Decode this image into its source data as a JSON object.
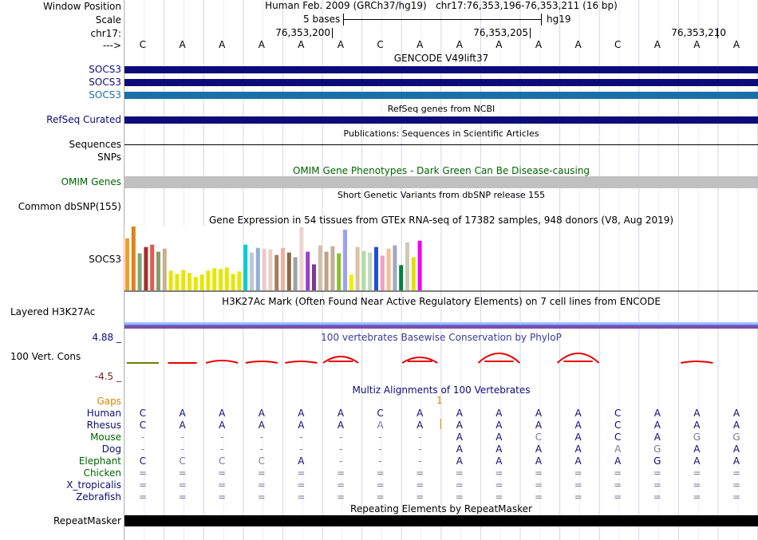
{
  "labels": {
    "window_position": "Window Position",
    "scale": "Scale",
    "chrom": "chr17:",
    "arrow": "--->",
    "gencode": [
      "SOCS3",
      "SOCS3",
      "SOCS3"
    ],
    "refseq": "RefSeq Curated",
    "sequences": "Sequences",
    "snps": "SNPs",
    "omim": "OMIM Genes",
    "dbsnp": "Common dbSNP(155)",
    "gtex": "SOCS3",
    "h3k27ac": "Layered H3K27Ac",
    "phylop_max": "4.88 _",
    "phylop": "100 Vert. Cons",
    "phylop_min": "-4.5 _",
    "gaps": "Gaps",
    "species": [
      "Human",
      "Rhesus",
      "Mouse",
      "Dog",
      "Elephant",
      "Chicken",
      "X_tropicalis",
      "Zebrafish"
    ],
    "repeatmasker": "RepeatMasker"
  },
  "header": {
    "assembly": "Human Feb. 2009 (GRCh37/hg19)",
    "position": "chr17:76,353,196-76,353,211 (16 bp)",
    "scale_label": "5 bases",
    "scale_db": "hg19",
    "positions": [
      "76,353,200",
      "76,353,205",
      "76,353,210"
    ]
  },
  "bases": [
    "C",
    "A",
    "A",
    "A",
    "A",
    "A",
    "C",
    "A",
    "A",
    "A",
    "A",
    "A",
    "C",
    "A",
    "A",
    "A"
  ],
  "track_titles": {
    "gencode": "GENCODE V49lift37",
    "refseq": "RefSeq genes from NCBI",
    "publications": "Publications: Sequences in Scientific Articles",
    "omim": "OMIM Gene Phenotypes - Dark Green Can Be Disease-causing",
    "dbsnp": "Short Genetic Variants from dbSNP release 155",
    "gtex": "Gene Expression in 54 tissues from GTEx RNA-seq of 17382 samples, 948 donors (V8, Aug 2019)",
    "h3k27ac": "H3K27Ac Mark (Often Found Near Active Regulatory Elements) on 7 cell lines from ENCODE",
    "phylop": "100 vertebrates Basewise Conservation by PhyloP",
    "multiz": "Multiz Alignments of 100 Vertebrates",
    "repeatmasker": "Repeating Elements by RepeatMasker"
  },
  "alignment": {
    "gap_marker": "1",
    "rows": [
      [
        "C",
        "A",
        "A",
        "A",
        "A",
        "A",
        "C",
        "A",
        "A",
        "A",
        "A",
        "A",
        "C",
        "A",
        "A",
        "A"
      ],
      [
        "C",
        "A",
        "A",
        "A",
        "A",
        "A",
        "A",
        "A",
        "A",
        "A",
        "A",
        "A",
        "C",
        "A",
        "A",
        "A"
      ],
      [
        "-",
        "-",
        "-",
        "-",
        "-",
        "-",
        "-",
        "-",
        "A",
        "A",
        "C",
        "A",
        "C",
        "A",
        "G",
        "G"
      ],
      [
        "-",
        "-",
        "-",
        "-",
        "-",
        "-",
        "-",
        "-",
        "A",
        "A",
        "A",
        "A",
        "A",
        "G",
        "A",
        "A"
      ],
      [
        "C",
        "C",
        "C",
        "C",
        "A",
        "-",
        "-",
        "-",
        "A",
        "A",
        "A",
        "A",
        "A",
        "G",
        "A",
        "A"
      ],
      [
        "=",
        "=",
        "=",
        "=",
        "=",
        "=",
        "=",
        "=",
        "=",
        "=",
        "=",
        "=",
        "=",
        "=",
        "=",
        "="
      ],
      [
        "=",
        "=",
        "=",
        "=",
        "=",
        "=",
        "=",
        "=",
        "=",
        "=",
        "=",
        "=",
        "=",
        "=",
        "=",
        "="
      ],
      [
        "=",
        "=",
        "=",
        "=",
        "=",
        "=",
        "=",
        "=",
        "=",
        "=",
        "=",
        "=",
        "=",
        "=",
        "=",
        "="
      ]
    ],
    "light": [
      [],
      [
        6
      ],
      [
        10,
        14,
        15
      ],
      [
        12,
        13
      ],
      [
        1,
        2,
        3
      ],
      [],
      [],
      []
    ]
  },
  "gtex_bars": {
    "values": [
      66,
      81,
      47,
      55,
      58,
      49,
      53,
      25,
      21,
      26,
      22,
      17,
      20,
      25,
      28,
      27,
      29,
      21,
      24,
      58,
      48,
      54,
      53,
      52,
      45,
      54,
      48,
      42,
      80,
      49,
      33,
      57,
      49,
      56,
      47,
      77,
      20,
      55,
      50,
      48,
      55,
      44,
      53,
      57,
      32,
      61,
      42,
      63
    ],
    "colors": [
      "#f39c2a",
      "#e0801a",
      "#7aa873",
      "#a0302c",
      "#e05a50",
      "#8a9a6a",
      "#c8b090",
      "#e6e600",
      "#e6e600",
      "#e6e600",
      "#e6e600",
      "#e6e600",
      "#e6e600",
      "#e6e600",
      "#e6e600",
      "#e6e600",
      "#e6e600",
      "#e6e600",
      "#e6e600",
      "#00ced1",
      "#b8c8e0",
      "#90b0d8",
      "#f0c8c8",
      "#e8d0c8",
      "#a08060",
      "#f0b0a0",
      "#8a6a4a",
      "#a0a0a0",
      "#f0d0d0",
      "#9a40c8",
      "#7a3a90",
      "#d0c0b0",
      "#c0a080",
      "#c0b098",
      "#8fbc30",
      "#a0a0f0",
      "#f0f000",
      "#e0c0a0",
      "#b0e0a0",
      "#c0d8c0",
      "#2050d0",
      "#f0a0c0",
      "#f0c090",
      "#a0a8c0",
      "#008040",
      "#d0c8b8",
      "#e0e000",
      "#f000f0"
    ]
  },
  "colors": {
    "gencode_dark": "#0c0c78",
    "gencode_light": "#1b6fa9",
    "omim": "#c0c0c0",
    "phylop_pos": "#e60000",
    "phylop_neg": "#6f7f00",
    "repeat": "#000000"
  }
}
